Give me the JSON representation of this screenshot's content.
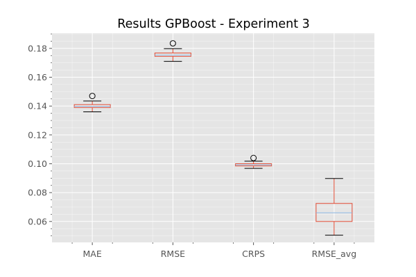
{
  "chart_data": {
    "type": "box",
    "title": "Results GPBoost - Experiment 3",
    "xlabel": "",
    "ylabel": "",
    "categories": [
      "MAE",
      "RMSE",
      "CRPS",
      "RMSE_avg"
    ],
    "boxes": [
      {
        "name": "MAE",
        "whisker_low": 0.136,
        "q1": 0.139,
        "median": 0.1398,
        "q3": 0.141,
        "whisker_high": 0.1435,
        "outliers": [
          0.147
        ]
      },
      {
        "name": "RMSE",
        "whisker_low": 0.171,
        "q1": 0.1745,
        "median": 0.1753,
        "q3": 0.1768,
        "whisker_high": 0.1798,
        "outliers": [
          0.1835
        ]
      },
      {
        "name": "CRPS",
        "whisker_low": 0.0968,
        "q1": 0.0985,
        "median": 0.0992,
        "q3": 0.1,
        "whisker_high": 0.1018,
        "outliers": [
          0.104
        ]
      },
      {
        "name": "RMSE_avg",
        "whisker_low": 0.0505,
        "q1": 0.06,
        "median": 0.066,
        "q3": 0.0725,
        "whisker_high": 0.0898,
        "outliers": []
      }
    ],
    "ylim": [
      0.0455,
      0.1905
    ],
    "yticks": [
      0.06,
      0.08,
      0.1,
      0.12,
      0.14,
      0.16,
      0.18
    ],
    "ytick_labels": [
      "0.06",
      "0.08",
      "0.10",
      "0.12",
      "0.14",
      "0.16",
      "0.18"
    ],
    "grid": true,
    "colors": {
      "box": "#E24A33",
      "median": "#8EBAE5",
      "background": "#E5E5E5",
      "grid": "#FFFFFF",
      "outlier": "#000000"
    }
  }
}
